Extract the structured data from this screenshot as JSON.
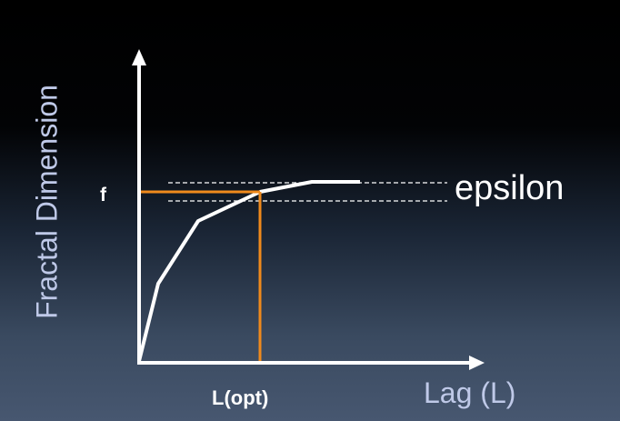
{
  "labels": {
    "y_axis": "Fractal Dimension",
    "x_axis": "Lag (L)",
    "l_opt": "L(opt)",
    "f": "f",
    "epsilon": "epsilon"
  },
  "colors": {
    "curve": "#ffffff",
    "axes": "#ffffff",
    "guide_lines": "#f08a1c",
    "band": "#ffffff",
    "axis_label": "#bfc9e8"
  }
}
